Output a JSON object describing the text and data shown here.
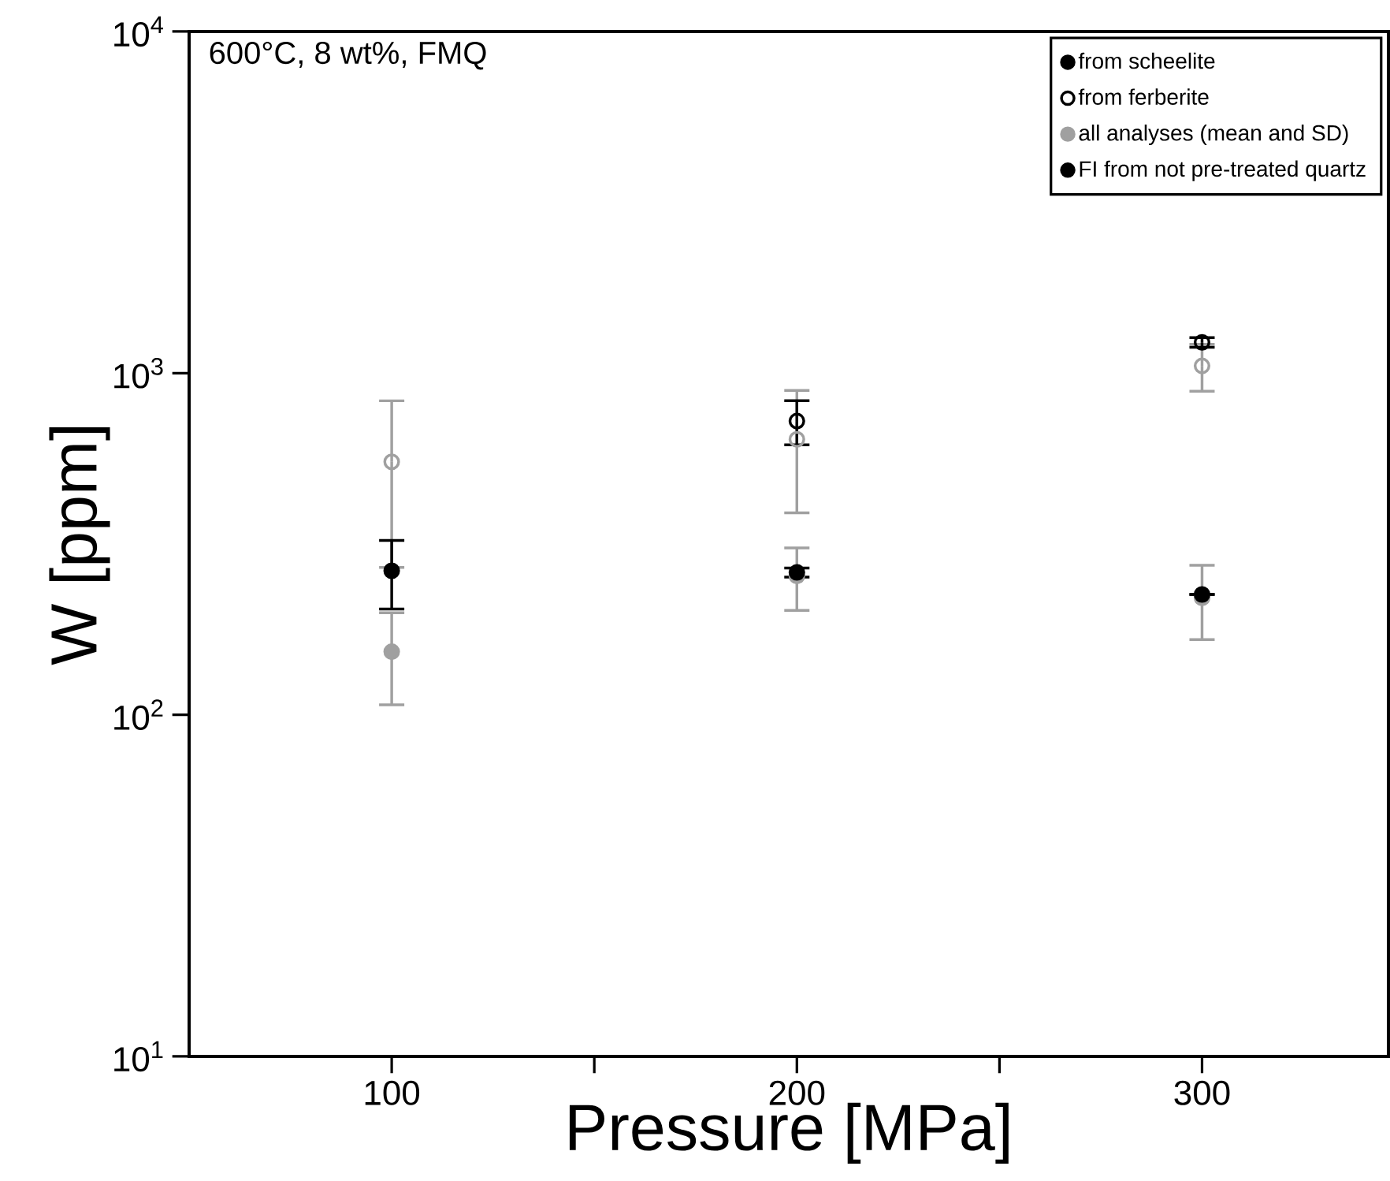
{
  "chart_data": {
    "type": "scatter",
    "title": "600°C, 8 wt%, FMQ",
    "xlabel": "Pressure [MPa]",
    "ylabel": "W [ppm]",
    "x": [
      100,
      200,
      300
    ],
    "xlim": [
      50,
      346
    ],
    "xticks": [
      100,
      {
        "value": 150,
        "label": null
      },
      200,
      {
        "value": 250,
        "label": null
      },
      300
    ],
    "ylim": [
      10,
      10000
    ],
    "log": "y",
    "yticks": [
      {
        "value": 10,
        "label": "10$^{1}$"
      },
      {
        "value": 100,
        "label": "10$^{2}$"
      },
      {
        "value": 1000,
        "label": "10$^{3}$"
      },
      {
        "value": 10000,
        "label": "10$^{4}$"
      }
    ],
    "legend": "top right",
    "grid": false,
    "annotations": [
      "FI from not pre-treated quartz"
    ],
    "series": [
      {
        "name": "all analyses (mean and SD)",
        "color": "#a0a0a0",
        "marker": "circle",
        "values": [
          153,
          255,
          220
        ],
        "errors": [
          46,
          53,
          54
        ]
      },
      {
        "color": "#a0a0a0",
        "marker": "open circle",
        "values": [
          550,
          640,
          1050
        ],
        "errors": [
          280,
          250,
          165
        ]
      },
      {
        "name": "from scheelite",
        "color": "#000000",
        "marker": "circle",
        "values": [
          264,
          261,
          225
        ],
        "errors": [
          60,
          8,
          null
        ]
      },
      {
        "name": "from ferberite",
        "color": "#000000",
        "marker": "open circle",
        "values": [
          null,
          724,
          1231
        ],
        "errors": [
          null,
          107,
          40
        ]
      }
    ]
  }
}
